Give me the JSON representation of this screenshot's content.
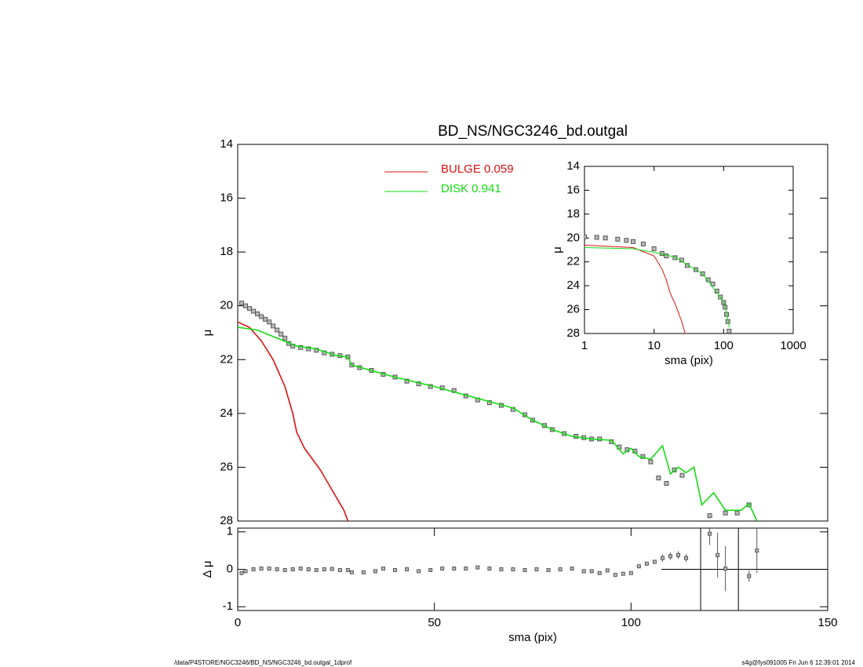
{
  "chart_data": [
    {
      "type": "line",
      "title": "BD_NS/NGC3246_bd.outgal",
      "ylabel": "μ",
      "xlim": [
        0,
        150
      ],
      "ylim": [
        28,
        14
      ],
      "yticks": [
        14,
        16,
        18,
        20,
        22,
        24,
        26,
        28
      ],
      "series": [
        {
          "style": "markers",
          "color": "#555555",
          "x": [
            1,
            2,
            3,
            4,
            5,
            6,
            7,
            8,
            9,
            10,
            11,
            12,
            13,
            14,
            16,
            18,
            20,
            22,
            24,
            26,
            28,
            29,
            31,
            34,
            37,
            40,
            43,
            46,
            49,
            52,
            55,
            58,
            61,
            64,
            67,
            70,
            73,
            75,
            78,
            80,
            83,
            86,
            88,
            90,
            92,
            95,
            97,
            99,
            101,
            103,
            105,
            107,
            109,
            111,
            113,
            120,
            124,
            127,
            130
          ],
          "values": [
            19.9,
            20.0,
            20.1,
            20.2,
            20.3,
            20.4,
            20.5,
            20.6,
            20.75,
            20.9,
            21.05,
            21.2,
            21.4,
            21.5,
            21.55,
            21.6,
            21.65,
            21.75,
            21.8,
            21.85,
            21.9,
            22.2,
            22.3,
            22.4,
            22.55,
            22.65,
            22.8,
            22.9,
            23.0,
            23.05,
            23.15,
            23.35,
            23.5,
            23.6,
            23.7,
            23.85,
            24.05,
            24.25,
            24.45,
            24.6,
            24.75,
            24.85,
            24.9,
            24.95,
            24.95,
            25.05,
            25.25,
            25.35,
            25.4,
            25.6,
            25.8,
            26.4,
            26.6,
            26.1,
            26.3,
            27.8,
            27.7,
            27.7,
            27.4
          ]
        },
        {
          "style": "line",
          "name": "BULGE  0.059",
          "color": "#dd1111",
          "x": [
            0,
            3,
            6,
            9,
            12,
            14,
            15,
            17,
            19,
            21,
            23,
            25,
            27,
            28
          ],
          "values": [
            20.6,
            20.8,
            21.3,
            22.0,
            23.0,
            24.0,
            24.7,
            25.3,
            25.7,
            26.1,
            26.6,
            27.1,
            27.6,
            28.0
          ]
        },
        {
          "style": "line",
          "name": "DISK  0.941",
          "color": "#11dd11",
          "x": [
            0,
            5,
            10,
            15,
            20,
            25,
            28,
            29,
            35,
            40,
            50,
            60,
            70,
            75,
            80,
            85,
            90,
            95,
            98,
            100,
            102,
            105,
            108,
            110,
            112,
            114,
            116,
            118,
            121,
            124,
            128,
            130,
            132
          ],
          "values": [
            20.8,
            20.9,
            21.2,
            21.5,
            21.6,
            21.85,
            21.9,
            22.2,
            22.45,
            22.65,
            23.0,
            23.4,
            23.8,
            24.25,
            24.6,
            24.85,
            24.95,
            25.0,
            25.5,
            25.3,
            25.6,
            25.7,
            25.2,
            26.25,
            26.0,
            26.2,
            26.0,
            27.4,
            26.95,
            27.6,
            27.6,
            27.35,
            28.0
          ]
        }
      ]
    },
    {
      "type": "line",
      "ylabel": "μ",
      "xlabel": "sma (pix)",
      "xlog": true,
      "xlim": [
        1,
        1000
      ],
      "xticks": [
        1,
        10,
        100,
        1000
      ],
      "ylim": [
        28,
        14
      ],
      "yticks": [
        14,
        16,
        18,
        20,
        22,
        24,
        26,
        28
      ],
      "series": [
        {
          "style": "markers",
          "color": "#555555",
          "x": [
            1,
            1.5,
            2,
            3,
            4,
            5,
            7,
            10,
            13,
            15,
            20,
            25,
            30,
            40,
            50,
            60,
            70,
            80,
            90,
            100,
            105,
            110,
            115,
            120
          ],
          "values": [
            19.9,
            19.95,
            20.0,
            20.1,
            20.2,
            20.3,
            20.5,
            20.9,
            21.3,
            21.5,
            21.65,
            21.85,
            22.3,
            22.65,
            23.0,
            23.5,
            23.85,
            24.45,
            24.95,
            25.4,
            25.8,
            26.4,
            27.0,
            27.8
          ]
        },
        {
          "style": "line",
          "color": "#dd1111",
          "x": [
            1,
            5,
            10,
            13,
            15,
            17,
            20,
            25,
            28
          ],
          "values": [
            20.6,
            20.8,
            21.5,
            22.6,
            23.5,
            24.6,
            25.5,
            27.0,
            28.0
          ]
        },
        {
          "style": "line",
          "color": "#11dd11",
          "x": [
            1,
            5,
            10,
            20,
            50,
            100,
            110,
            120
          ],
          "values": [
            20.8,
            20.9,
            21.2,
            21.6,
            23.0,
            25.3,
            26.2,
            27.5
          ]
        }
      ]
    },
    {
      "type": "scatter",
      "ylabel": "Δ μ",
      "xlabel": "sma (pix)",
      "xlim": [
        0,
        150
      ],
      "xticks": [
        0,
        50,
        100,
        150
      ],
      "ylim": [
        -1.1,
        1.1
      ],
      "yticks": [
        -1,
        0,
        1
      ],
      "hline": 0,
      "vlines": [
        117.7,
        127.3
      ],
      "series": [
        {
          "style": "markers",
          "color": "#555555",
          "x": [
            1,
            2,
            4,
            6,
            8,
            10,
            12,
            14,
            16,
            18,
            20,
            22,
            24,
            26,
            28,
            29,
            32,
            35,
            37,
            40,
            43,
            46,
            49,
            52,
            55,
            58,
            61,
            64,
            67,
            70,
            73,
            76,
            79,
            82,
            85,
            88,
            90,
            92,
            94,
            96,
            98,
            100,
            102,
            104,
            106,
            108,
            110,
            112,
            114,
            120,
            122,
            124,
            130,
            132
          ],
          "values": [
            -0.1,
            -0.05,
            0,
            0.02,
            0.02,
            0,
            -0.02,
            0,
            0.02,
            0,
            -0.02,
            0,
            0.01,
            -0.02,
            -0.02,
            -0.08,
            -0.08,
            -0.05,
            0.02,
            -0.02,
            0,
            -0.05,
            -0.02,
            0.02,
            0.02,
            0.02,
            0.05,
            0.02,
            0,
            0,
            -0.02,
            0,
            -0.02,
            0,
            0.02,
            -0.05,
            -0.05,
            -0.1,
            -0.03,
            -0.15,
            -0.12,
            -0.1,
            0.08,
            0.15,
            0.2,
            0.3,
            0.35,
            0.38,
            0.3,
            0.95,
            0.38,
            0.02,
            -0.18,
            0.5
          ],
          "errors": [
            null,
            null,
            null,
            null,
            null,
            null,
            null,
            null,
            null,
            null,
            null,
            null,
            null,
            null,
            null,
            null,
            null,
            null,
            null,
            null,
            null,
            null,
            null,
            null,
            null,
            null,
            null,
            null,
            null,
            null,
            null,
            null,
            null,
            null,
            null,
            null,
            null,
            null,
            null,
            null,
            null,
            null,
            null,
            null,
            null,
            0.1,
            0.1,
            0.1,
            0.1,
            0.3,
            0.6,
            0.6,
            0.15,
            0.6
          ]
        }
      ]
    }
  ],
  "footer": {
    "left": "/data/P4STORE/NGC3246/BD_NS/NGC3246_bd.outgal_1dprof",
    "right": "s4g@fys091005  Fri Jun  6 12:39:01 2014"
  }
}
